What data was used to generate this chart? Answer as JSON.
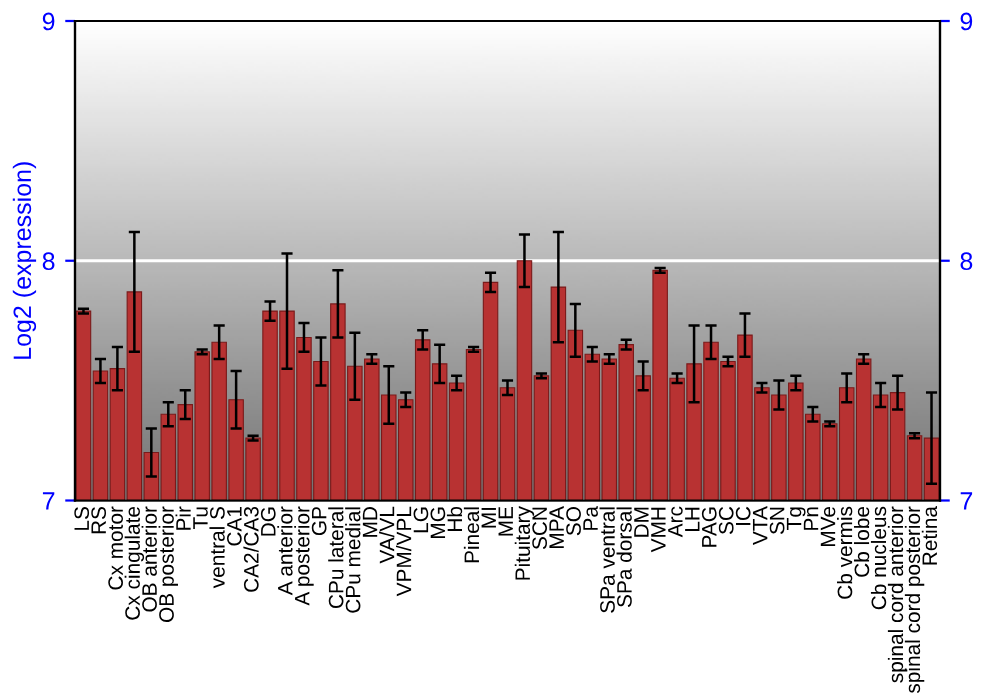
{
  "chart_data": {
    "type": "bar",
    "ylabel": "Log2 (expression)",
    "categories": [
      "LS",
      "RS",
      "Cx motor",
      "Cx cingulate",
      "OB anterior",
      "OB posterior",
      "Pir",
      "Tu",
      "ventral S",
      "CA1",
      "CA2/CA3",
      "DG",
      "A anterior",
      "A posterior",
      "GP",
      "CPu lateral",
      "CPu medial",
      "MD",
      "VA/VL",
      "VPM/VPL",
      "LG",
      "MG",
      "Hb",
      "Pineal",
      "MI",
      "ME",
      "Pituitary",
      "SCN",
      "MPA",
      "SO",
      "Pa",
      "SPa ventral",
      "SPa dorsal",
      "DM",
      "VMH",
      "Arc",
      "LH",
      "PAG",
      "SC",
      "IC",
      "VTA",
      "SN",
      "Tg",
      "Pn",
      "MVe",
      "Cb vermis",
      "Cb lobe",
      "Cb nucleus",
      "spinal cord anterior",
      "spinal cord posterior",
      "Retina"
    ],
    "values": [
      7.79,
      7.54,
      7.55,
      7.87,
      7.2,
      7.36,
      7.4,
      7.62,
      7.66,
      7.42,
      7.26,
      7.79,
      7.79,
      7.68,
      7.58,
      7.82,
      7.56,
      7.59,
      7.44,
      7.42,
      7.67,
      7.57,
      7.49,
      7.63,
      7.91,
      7.47,
      8.0,
      7.52,
      7.89,
      7.71,
      7.61,
      7.59,
      7.65,
      7.52,
      7.96,
      7.51,
      7.57,
      7.66,
      7.58,
      7.69,
      7.47,
      7.44,
      7.49,
      7.36,
      7.32,
      7.47,
      7.59,
      7.44,
      7.45,
      7.27,
      7.26
    ],
    "errors": [
      0.01,
      0.05,
      0.09,
      0.25,
      0.1,
      0.05,
      0.06,
      0.01,
      0.07,
      0.12,
      0.01,
      0.04,
      0.24,
      0.06,
      0.1,
      0.14,
      0.14,
      0.02,
      0.12,
      0.03,
      0.04,
      0.08,
      0.03,
      0.01,
      0.04,
      0.03,
      0.11,
      0.01,
      0.23,
      0.11,
      0.03,
      0.02,
      0.02,
      0.06,
      0.01,
      0.02,
      0.16,
      0.07,
      0.02,
      0.09,
      0.02,
      0.06,
      0.03,
      0.03,
      0.01,
      0.06,
      0.02,
      0.05,
      0.07,
      0.01,
      0.19
    ],
    "color": "#b83232",
    "ylim": [
      7,
      9
    ],
    "yticks": [
      7,
      8,
      9
    ],
    "y2lim": [
      7,
      9
    ],
    "y2ticks": [
      7,
      8,
      9
    ],
    "grid": "y"
  }
}
